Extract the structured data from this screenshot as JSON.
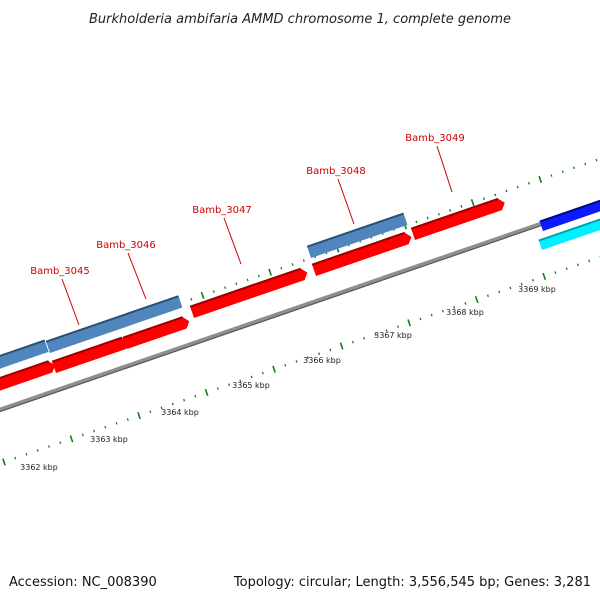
{
  "title": "Burkholderia ambifaria AMMD chromosome 1, complete genome",
  "footer": {
    "accession": "Accession: NC_008390",
    "summary": "Topology: circular; Length: 3,556,545 bp; Genes: 3,281"
  },
  "scale_labels": [
    "3362 kbp",
    "3363 kbp",
    "3364 kbp",
    "3365 kbp",
    "3366 kbp",
    "3367 kbp",
    "3368 kbp",
    "3369 kbp"
  ],
  "gene_labels": [
    "Bamb_3045",
    "Bamb_3046",
    "Bamb_3047",
    "Bamb_3048",
    "Bamb_3049"
  ],
  "colors": {
    "backbone": "#8a8a8a",
    "cds": "#ff0000",
    "gene": "#4f86bd",
    "label": "#cc0000",
    "tick": "#1a7a1a",
    "other_feature_dark": "#0a1cff",
    "other_feature_light": "#00f0ff"
  }
}
